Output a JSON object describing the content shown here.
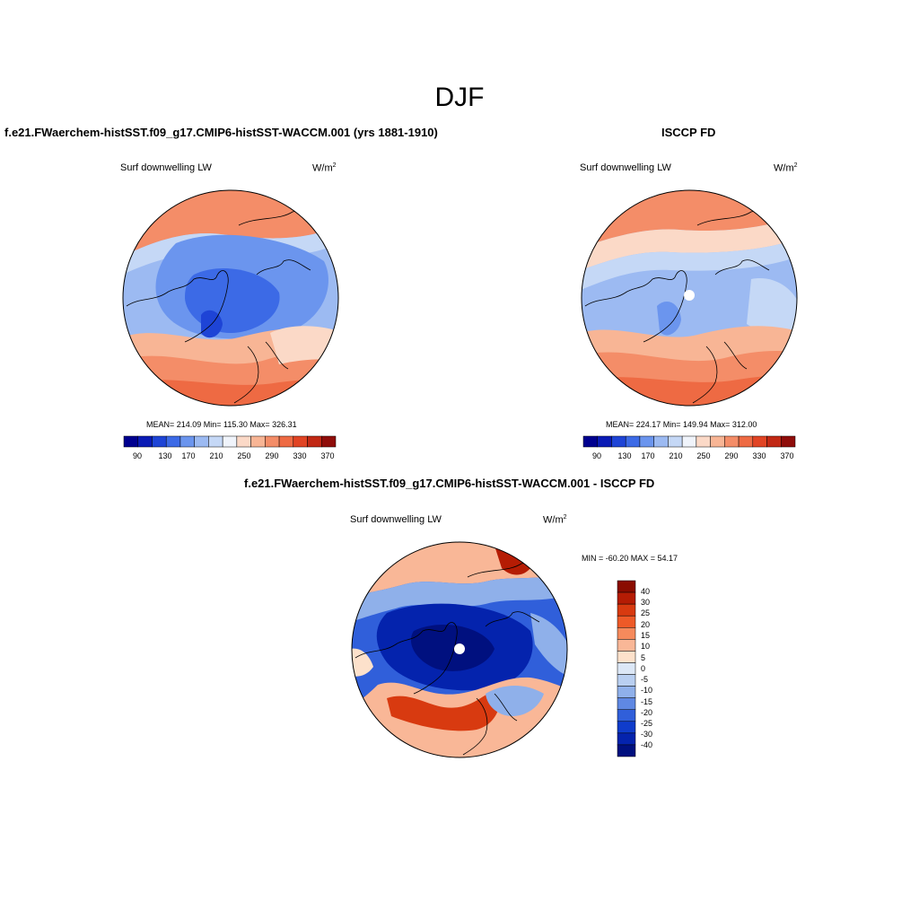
{
  "figure": {
    "season": "DJF",
    "variable": "Surf downwelling LW"
  },
  "panels": {
    "model": {
      "title": "f.e21.FWaerchem-histSST.f09_g17.CMIP6-histSST-WACCM.001 (yrs 1881-1910)",
      "variable": "Surf downwelling LW",
      "units_base": "W/m",
      "units_exp": "2",
      "stats": "MEAN= 214.09  Min= 115.30  Max= 326.31",
      "colorbar_ticks": [
        "90",
        "130",
        "170",
        "210",
        "250",
        "290",
        "330",
        "370"
      ]
    },
    "obs": {
      "title": "ISCCP FD",
      "variable": "Surf downwelling LW",
      "units_base": "W/m",
      "units_exp": "2",
      "stats": "MEAN= 224.17  Min= 149.94  Max= 312.00",
      "colorbar_ticks": [
        "90",
        "130",
        "170",
        "210",
        "250",
        "290",
        "330",
        "370"
      ]
    },
    "diff": {
      "title": "f.e21.FWaerchem-histSST.f09_g17.CMIP6-histSST-WACCM.001 - ISCCP FD",
      "variable": "Surf downwelling LW",
      "units_base": "W/m",
      "units_exp": "2",
      "stats": "MIN = -60.20 MAX =  54.17",
      "colorbar_ticks": [
        "40",
        "30",
        "25",
        "20",
        "15",
        "10",
        "5",
        "0",
        "-5",
        "-10",
        "-15",
        "-20",
        "-25",
        "-30",
        "-40"
      ]
    }
  },
  "colors": {
    "abs_scale": [
      "#00008f",
      "#0a1bb5",
      "#1e44d6",
      "#3c6ae6",
      "#6b95ee",
      "#9cbaf2",
      "#c5d8f6",
      "#f0f4fb",
      "#fbd9c7",
      "#f8b595",
      "#f48d68",
      "#ee6a43",
      "#e14424",
      "#c12814",
      "#8f0d0a"
    ],
    "diff_scale": [
      "#8a0c00",
      "#b51c04",
      "#d83a10",
      "#ee5a28",
      "#f68a5c",
      "#f9b797",
      "#fde1cb",
      "#dce7f6",
      "#b9cff1",
      "#8fb0ea",
      "#5f88e3",
      "#305fda",
      "#0f3ccb",
      "#0423ad",
      "#00107f"
    ]
  }
}
